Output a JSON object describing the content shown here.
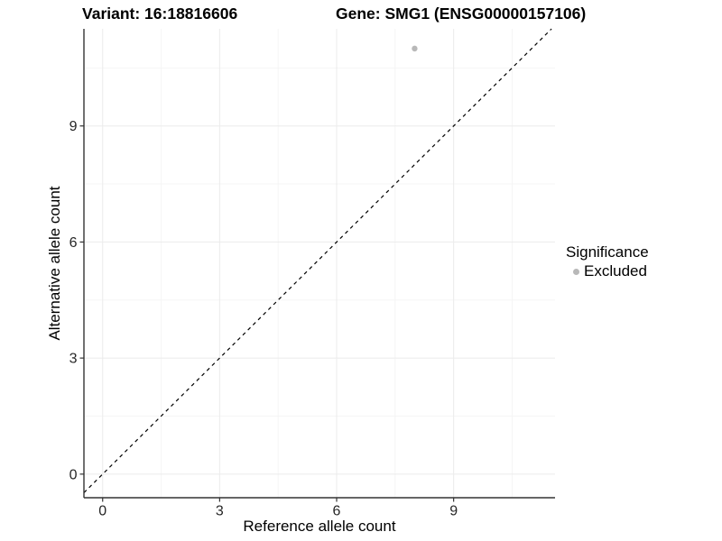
{
  "chart_data": {
    "type": "scatter",
    "titles": {
      "left": "Variant: 16:18816606",
      "right": "Gene: SMG1 (ENSG00000157106)"
    },
    "xlabel": "Reference allele count",
    "ylabel": "Alternative allele count",
    "xlim": [
      -0.48,
      11.6
    ],
    "ylim": [
      -0.61,
      11.51
    ],
    "x_ticks": [
      0,
      3,
      6,
      9
    ],
    "y_ticks": [
      0,
      3,
      6,
      9
    ],
    "x_minor_ticks": [
      1.5,
      4.5,
      7.5,
      10.5
    ],
    "y_minor_ticks": [
      1.5,
      4.5,
      7.5,
      10.5
    ],
    "grid": true,
    "points": [
      {
        "x": 8,
        "y": 11,
        "significance": "Excluded"
      }
    ],
    "abline": {
      "slope": 1,
      "intercept": 0,
      "linetype": "dashed"
    },
    "legend": {
      "title": "Significance",
      "position": "right",
      "entries": [
        {
          "label": "Excluded",
          "color": "#b8b8b8"
        }
      ]
    },
    "colors": {
      "background": "#ffffff",
      "point": "#b8b8b8",
      "axis_line": "#333333",
      "tick_label": "#262626",
      "grid_major": "#ebebeb",
      "grid_minor": "#f5f5f5",
      "abline": "#000000",
      "title": "#000000"
    }
  }
}
